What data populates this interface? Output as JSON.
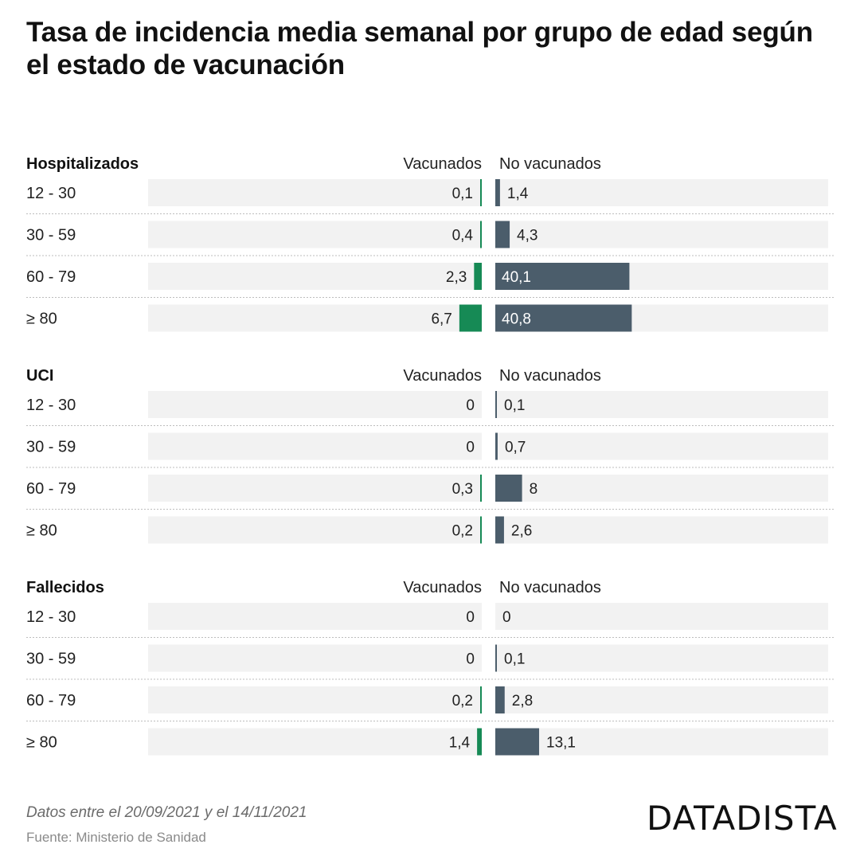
{
  "title": "Tasa de incidencia media semanal por grupo de edad según el estado de vacunación",
  "footer": {
    "note": "Datos entre el 20/09/2021 y el 14/11/2021",
    "source": "Fuente: Ministerio de Sanidad",
    "brand": "DATADISTA"
  },
  "colors": {
    "vaccinated": "#168a55",
    "unvaccinated": "#4b5d6b",
    "track": "#f2f2f2"
  },
  "chart_data": {
    "type": "bar",
    "layout": "diverging-horizontal",
    "column_headers": [
      "Vacunados",
      "No vacunados"
    ],
    "xlim": [
      0,
      45
    ],
    "groups": [
      {
        "name": "Hospitalizados",
        "categories": [
          "12 - 30",
          "30 - 59",
          "60 - 79",
          "≥ 80"
        ],
        "series": [
          {
            "name": "Vacunados",
            "values": [
              0.1,
              0.4,
              2.3,
              6.7
            ],
            "labels": [
              "0,1",
              "0,4",
              "2,3",
              "6,7"
            ]
          },
          {
            "name": "No vacunados",
            "values": [
              1.4,
              4.3,
              40.1,
              40.8
            ],
            "labels": [
              "1,4",
              "4,3",
              "40,1",
              "40,8"
            ]
          }
        ]
      },
      {
        "name": "UCI",
        "categories": [
          "12 - 30",
          "30 - 59",
          "60 - 79",
          "≥ 80"
        ],
        "series": [
          {
            "name": "Vacunados",
            "values": [
              0,
              0,
              0.3,
              0.2
            ],
            "labels": [
              "0",
              "0",
              "0,3",
              "0,2"
            ]
          },
          {
            "name": "No vacunados",
            "values": [
              0.1,
              0.7,
              8,
              2.6
            ],
            "labels": [
              "0,1",
              "0,7",
              "8",
              "2,6"
            ]
          }
        ]
      },
      {
        "name": "Fallecidos",
        "categories": [
          "12 - 30",
          "30 - 59",
          "60 - 79",
          "≥ 80"
        ],
        "series": [
          {
            "name": "Vacunados",
            "values": [
              0,
              0,
              0.2,
              1.4
            ],
            "labels": [
              "0",
              "0",
              "0,2",
              "1,4"
            ]
          },
          {
            "name": "No vacunados",
            "values": [
              0,
              0.1,
              2.8,
              13.1
            ],
            "labels": [
              "0",
              "0,1",
              "2,8",
              "13,1"
            ]
          }
        ]
      }
    ]
  }
}
